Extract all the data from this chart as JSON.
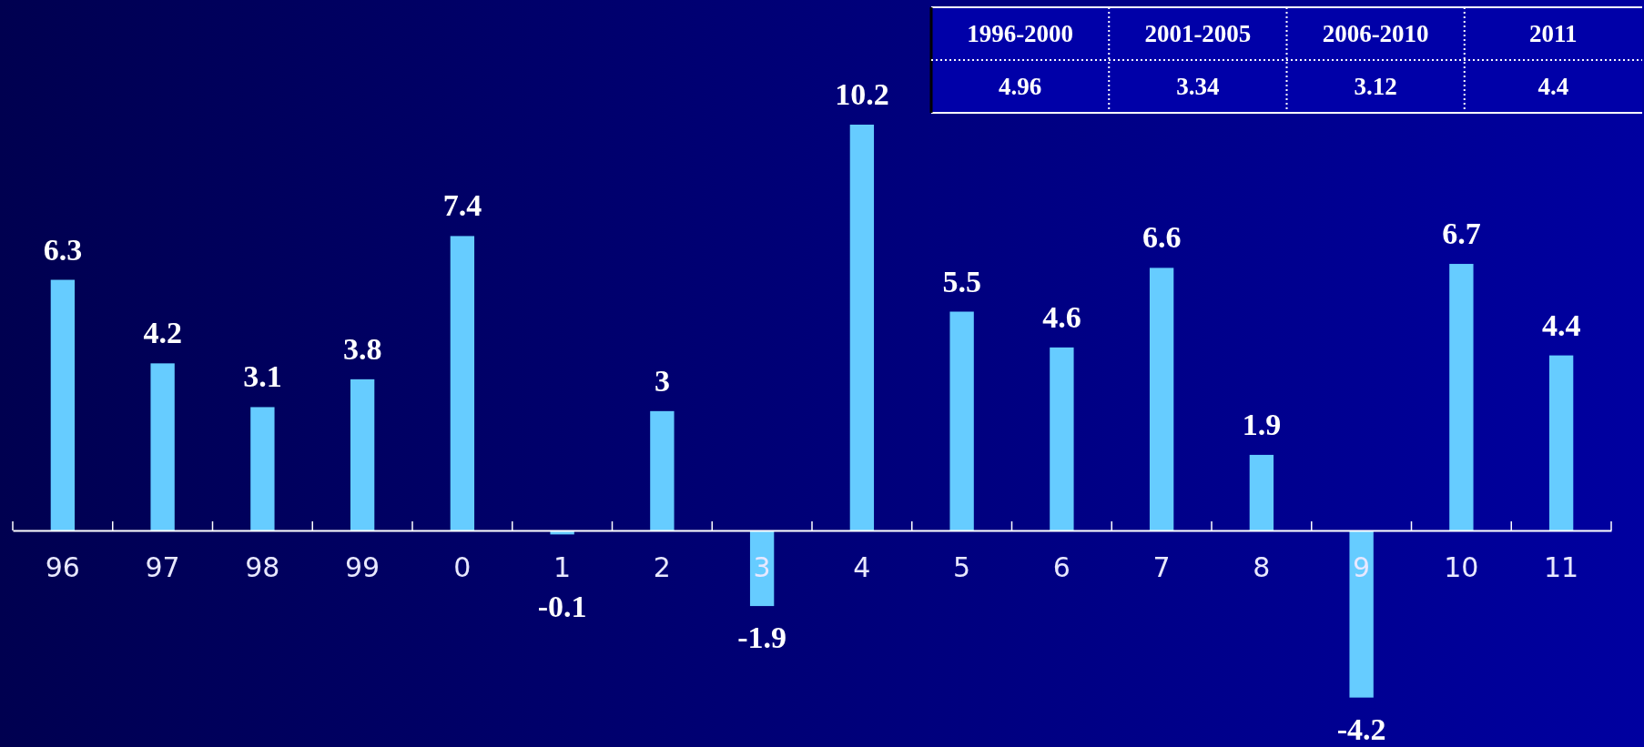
{
  "chart_data": {
    "type": "bar",
    "categories": [
      "96",
      "97",
      "98",
      "99",
      "0",
      "1",
      "2",
      "3",
      "4",
      "5",
      "6",
      "7",
      "8",
      "9",
      "10",
      "11"
    ],
    "values": [
      6.3,
      4.2,
      3.1,
      3.8,
      7.4,
      -0.1,
      3,
      -1.9,
      10.2,
      5.5,
      4.6,
      6.6,
      1.9,
      -4.2,
      6.7,
      4.4
    ],
    "color": "#66ccff",
    "data_labels": true,
    "annotations": [
      "1996-2000",
      "2001-2005",
      "2006-2010",
      "2011",
      "4.96",
      "3.34",
      "3.12",
      "4.4"
    ]
  }
}
